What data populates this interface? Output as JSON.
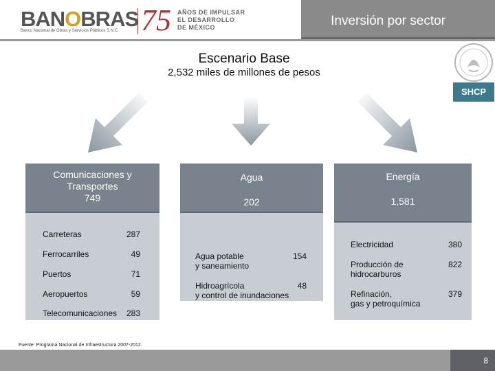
{
  "header": {
    "logo_main_a": "BAN",
    "logo_main_accent": "O",
    "logo_main_b": "BRAS",
    "logo_subtitle": "Banco Nacional de Obras y Servicios Públicos S.N.C.",
    "anniversary_number": "75",
    "anniversary_line1": "AÑOS DE IMPULSAR",
    "anniversary_line2": "EL DESARROLLO",
    "anniversary_line3": "DE MÉXICO",
    "title": "Inversión por sector"
  },
  "shcp_label": "SHCP",
  "scenario": {
    "title": "Escenario Base",
    "subtitle": "2,532 miles de millones de pesos"
  },
  "sectors": {
    "communications": {
      "name_line1": "Comunicaciones y",
      "name_line2": "Transportes",
      "total": "749",
      "items": [
        {
          "label": "Carreteras",
          "value": "287"
        },
        {
          "label": "Ferrocarriles",
          "value": "49"
        },
        {
          "label": "Puertos",
          "value": "71"
        },
        {
          "label": "Aeropuertos",
          "value": "59"
        },
        {
          "label": "Telecomunicaciones",
          "value": "283"
        }
      ]
    },
    "water": {
      "name": "Agua",
      "total": "202",
      "items": [
        {
          "label_line1": "Agua potable",
          "label_line2": "y saneamiento",
          "value": "154"
        },
        {
          "label_line1": "Hidroagrícola",
          "label_line2": "y control de inundaciones",
          "value": "48"
        }
      ]
    },
    "energy": {
      "name": "Energía",
      "total": "1,581",
      "items": [
        {
          "label_line1": "Electricidad",
          "label_line2": "",
          "value": "380"
        },
        {
          "label_line1": "Producción de",
          "label_line2": "hidrocarburos",
          "value": "822"
        },
        {
          "label_line1": "Refinación,",
          "label_line2": "gas y petroquímica",
          "value": "379"
        }
      ]
    }
  },
  "footnote": "Fuente: Programa Nacional de Infraestructura 2007-2012.",
  "page_number": "8",
  "colors": {
    "panel_header": "#78838d",
    "panel_body": "#c7cdd3",
    "brand_red": "#b03030",
    "shcp_teal": "#3e7a8e"
  }
}
